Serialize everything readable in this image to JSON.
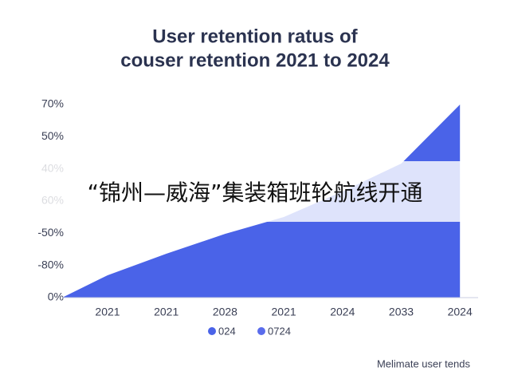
{
  "chart_data": {
    "type": "area",
    "title_lines": [
      "User retention ratus of",
      "couser retention 2021 to 2024"
    ],
    "categories": [
      "2021",
      "2021",
      "2028",
      "2021",
      "2024",
      "2033",
      "2024"
    ],
    "values": [
      8.1,
      15.9,
      23.1,
      29.2,
      38.5,
      48.6,
      70
    ],
    "color": "#4a63e8",
    "ylim": [
      0,
      70
    ],
    "y_axis_labels": [
      "70%",
      "50%",
      "40%",
      "60%",
      "-50%",
      "-80%",
      "0%"
    ],
    "legend": [
      {
        "name": "024",
        "color": "#4a63e8"
      },
      {
        "name": "0724",
        "color": "#5a6cec"
      }
    ],
    "footnote": "Melimate user tends",
    "overlay_banner": "“锦州—威海”集装箱班轮航线开通"
  }
}
